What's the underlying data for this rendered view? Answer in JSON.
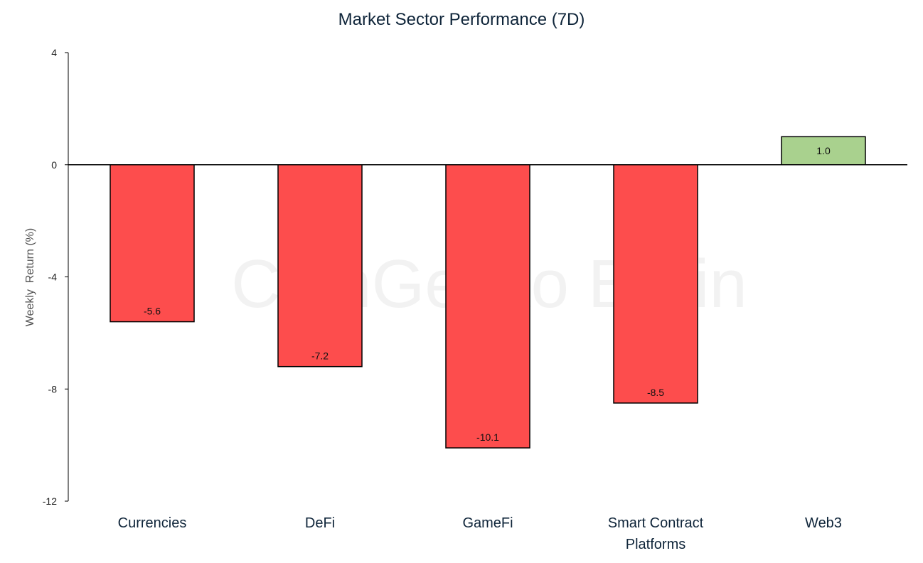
{
  "watermark": "CoinGecko Brain",
  "chart_data": {
    "type": "bar",
    "title": "Market Sector Performance (7D)",
    "xlabel": "",
    "ylabel": "Weekly  Return (%)",
    "categories": [
      [
        "Currencies"
      ],
      [
        "DeFi"
      ],
      [
        "GameFi"
      ],
      [
        "Smart Contract",
        "Platforms"
      ],
      [
        "Web3"
      ]
    ],
    "values": [
      -5.6,
      -7.2,
      -10.1,
      -8.5,
      1.0
    ],
    "value_labels": [
      "-5.6",
      "-7.2",
      "-10.1",
      "-8.5",
      "1.0"
    ],
    "ylim": [
      -12,
      4
    ],
    "yticks": [
      4,
      0,
      -4,
      -8,
      -12
    ],
    "colors": {
      "negative": "#fd4d4d",
      "positive": "#a9d18e",
      "text": "#0e2439"
    },
    "grid": false,
    "legend": "none"
  }
}
